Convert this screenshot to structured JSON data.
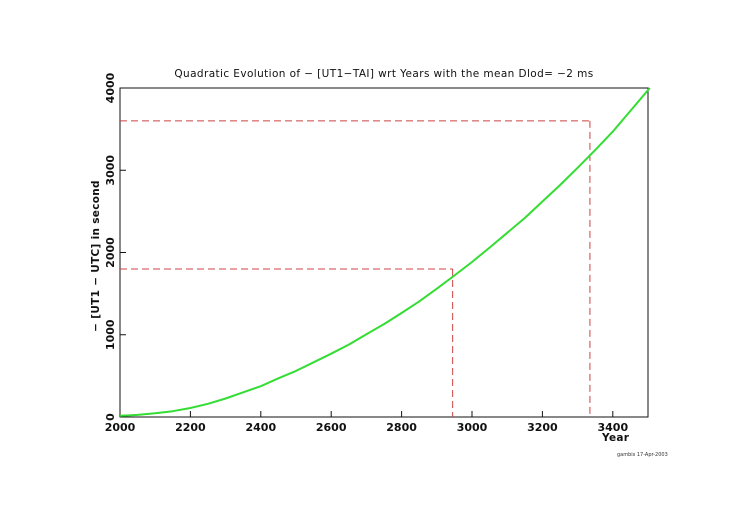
{
  "chart_data": {
    "type": "line",
    "title": "Quadratic Evolution of − [UT1−TAI] wrt Years with the mean Dlod= −2 ms",
    "xlabel": "Year",
    "ylabel": "− [UT1 − UTC] in second",
    "xlim": [
      2000,
      3500
    ],
    "ylim": [
      0,
      4000
    ],
    "xticks": [
      2000,
      2200,
      2400,
      2600,
      2800,
      3000,
      3200,
      3400
    ],
    "yticks": [
      0,
      1000,
      2000,
      3000,
      4000
    ],
    "grid": false,
    "line_color": "#33dd33",
    "reference_color": "#cc4444",
    "series": [
      {
        "x": [
          2000,
          2050,
          2100,
          2150,
          2200,
          2250,
          2300,
          2350,
          2400,
          2450,
          2500,
          2550,
          2600,
          2650,
          2700,
          2750,
          2800,
          2850,
          2900,
          2950,
          3000,
          3050,
          3100,
          3150,
          3200,
          3250,
          3300,
          3350,
          3400
        ],
        "values": [
          15,
          25,
          45,
          70,
          110,
          160,
          225,
          300,
          375,
          470,
          560,
          665,
          770,
          880,
          1005,
          1130,
          1265,
          1405,
          1560,
          1720,
          1885,
          2060,
          2240,
          2420,
          2620,
          2820,
          3030,
          3245,
          3470
        ]
      }
    ],
    "reference_lines": [
      {
        "x": 2945,
        "y": 1800
      },
      {
        "x": 3335,
        "y": 3600
      }
    ],
    "footer_text": "gambis 17-Apr-2003"
  }
}
